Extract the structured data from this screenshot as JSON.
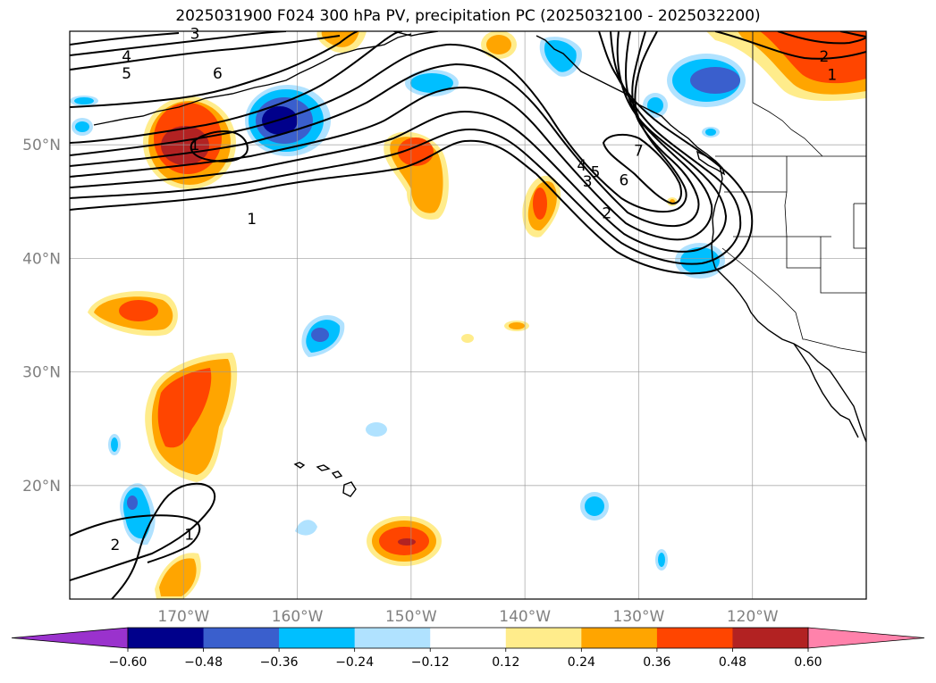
{
  "title": "2025031900 F024 300 hPa PV, precipitation PC (2025032100 - 2025032200)",
  "map": {
    "projection": "PlateCarree",
    "lon_range": [
      -180,
      -110
    ],
    "lat_range": [
      10,
      60
    ],
    "gridlines": true,
    "lat_ticks": [
      {
        "value": 20,
        "label": "20°N"
      },
      {
        "value": 30,
        "label": "30°N"
      },
      {
        "value": 40,
        "label": "40°N"
      },
      {
        "value": 50,
        "label": "50°N"
      }
    ],
    "lon_ticks": [
      {
        "value": -170,
        "label": "170°W"
      },
      {
        "value": -160,
        "label": "160°W"
      },
      {
        "value": -150,
        "label": "150°W"
      },
      {
        "value": -140,
        "label": "140°W"
      },
      {
        "value": -130,
        "label": "130°W"
      },
      {
        "value": -120,
        "label": "120°W"
      }
    ]
  },
  "colorbar": {
    "levels": [
      "-0.60",
      "-0.48",
      "-0.36",
      "-0.24",
      "-0.12",
      "0.12",
      "0.24",
      "0.36",
      "0.48",
      "0.60"
    ],
    "colors": [
      "#9a32cd",
      "#00008b",
      "#3a5fcd",
      "#00bfff",
      "#b0e2ff",
      "#ffffff",
      "#ffec8b",
      "#ffa500",
      "#ff4500",
      "#b22222",
      "#ff82ab"
    ],
    "extend": "both"
  },
  "pv_contour_labels": [
    {
      "text": "1",
      "lon": -169,
      "lat": 50
    },
    {
      "text": "1",
      "lon": -164,
      "lat": 43.5
    },
    {
      "text": "4",
      "lon": -175,
      "lat": 57.8
    },
    {
      "text": "5",
      "lon": -175,
      "lat": 56.3
    },
    {
      "text": "6",
      "lon": -167,
      "lat": 56.3
    },
    {
      "text": "3",
      "lon": -169,
      "lat": 59.8
    },
    {
      "text": "7",
      "lon": -130,
      "lat": 49.5
    },
    {
      "text": "4",
      "lon": -135,
      "lat": 48.2
    },
    {
      "text": "5",
      "lon": -133.8,
      "lat": 47.6
    },
    {
      "text": "3",
      "lon": -134.5,
      "lat": 46.8
    },
    {
      "text": "6",
      "lon": -131.3,
      "lat": 46.9
    },
    {
      "text": "2",
      "lon": -132.8,
      "lat": 44
    },
    {
      "text": "2",
      "lon": -113.7,
      "lat": 57.8
    },
    {
      "text": "1",
      "lon": -113,
      "lat": 56.2
    },
    {
      "text": "2",
      "lon": -176,
      "lat": 14.8
    },
    {
      "text": "1",
      "lon": -169.5,
      "lat": 15.7
    }
  ]
}
